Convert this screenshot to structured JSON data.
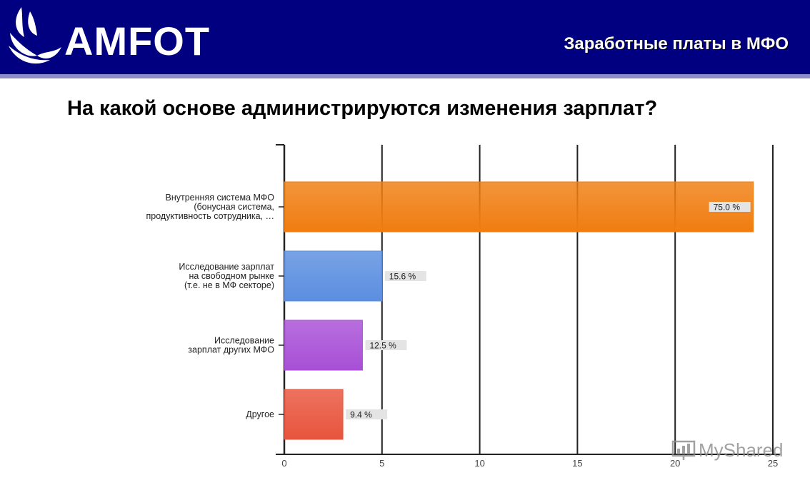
{
  "header": {
    "logo_text": "AMFOT",
    "title": "Заработные платы в МФО",
    "background": "#000080",
    "logo_icon": "leaf-logo-icon"
  },
  "question": "На какой основе администрируются изменения зарплат?",
  "watermark": {
    "text": "MyShared",
    "icon": "presentation-screen-icon"
  },
  "chart_data": {
    "type": "bar",
    "orientation": "horizontal",
    "categories": [
      [
        "Внутренняя система МФО",
        "(бонусная система,",
        "продуктивность сотрудника, …"
      ],
      [
        "Исследование зарплат",
        "на свободном рынке",
        "(т.е. не в МФ секторе)"
      ],
      [
        "Исследование",
        "зарплат других МФО"
      ],
      [
        "Другое"
      ]
    ],
    "values": [
      24,
      5,
      4,
      3
    ],
    "data_labels": [
      "75.0 %",
      "15.6 %",
      "12.5 %",
      "9.4 %"
    ],
    "colors": [
      "#f07d10",
      "#5b8ee0",
      "#a84fd6",
      "#e8543c"
    ],
    "xlim": [
      0,
      25
    ],
    "xticks": [
      0,
      5,
      10,
      15,
      20,
      25
    ],
    "grid": true,
    "legend": false
  }
}
